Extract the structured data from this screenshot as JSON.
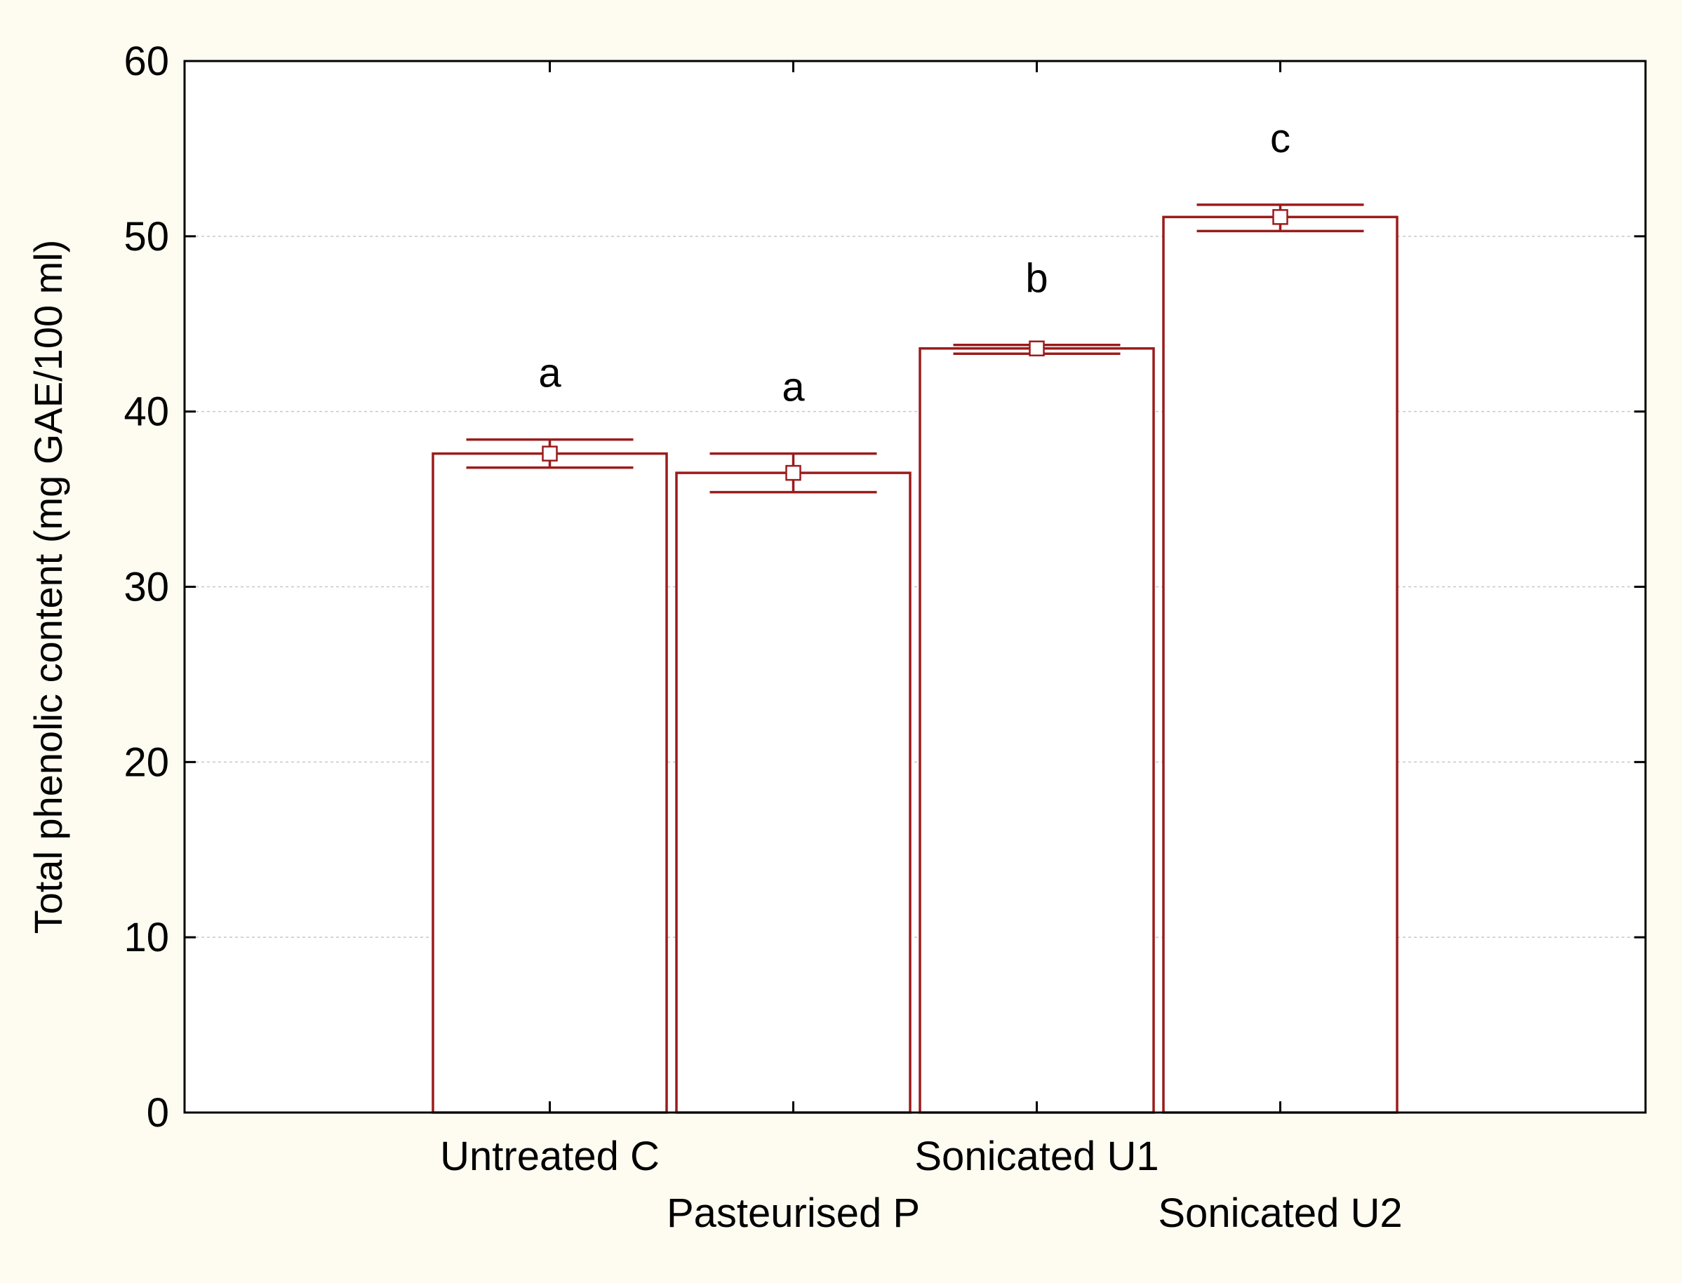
{
  "page": {
    "background": "#fefcf1",
    "plot_background": "#ffffff"
  },
  "chart_data": {
    "type": "bar",
    "title": "",
    "xlabel": "",
    "ylabel": "Total phenolic content (mg GAE/100 ml)",
    "ylim": [
      0,
      60
    ],
    "yticks": [
      0,
      10,
      20,
      30,
      40,
      50,
      60
    ],
    "grid": true,
    "legend": "none",
    "categories": [
      "Untreated C",
      "Pasteurised P",
      "Sonicated U1",
      "Sonicated U2"
    ],
    "values": [
      37.6,
      36.5,
      43.6,
      51.1
    ],
    "error_low": [
      36.8,
      35.4,
      43.3,
      50.3
    ],
    "error_high": [
      38.4,
      37.6,
      43.8,
      51.8
    ],
    "significance_letters": [
      "a",
      "a",
      "b",
      "c"
    ],
    "bar_color": "#9b1c1c",
    "bar_fill": "#ffffff"
  }
}
